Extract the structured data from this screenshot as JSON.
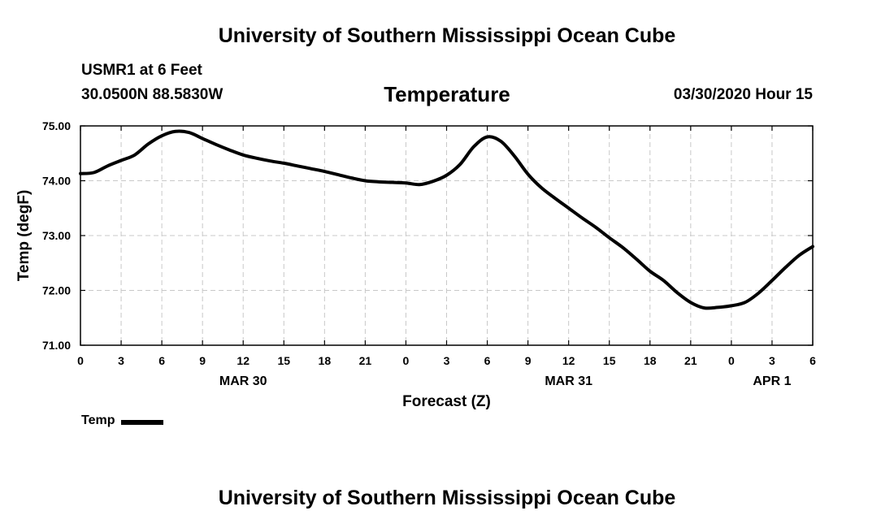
{
  "header": {
    "title": "University of Southern Mississippi Ocean Cube",
    "station": "USMR1 at 6 Feet",
    "coordinates": "30.0500N 88.5830W",
    "run_time": "03/30/2020 Hour 15"
  },
  "footer": {
    "title": "University of Southern Mississippi Ocean Cube"
  },
  "chart_data": {
    "type": "line",
    "title": "Temperature",
    "xlabel": "Forecast (Z)",
    "ylabel": "Temp (degF)",
    "xlim": [
      0,
      54
    ],
    "ylim": [
      71.0,
      75.0
    ],
    "grid": true,
    "y_ticks": [
      {
        "value": 71.0,
        "label": "71.00"
      },
      {
        "value": 72.0,
        "label": "72.00"
      },
      {
        "value": 73.0,
        "label": "73.00"
      },
      {
        "value": 74.0,
        "label": "74.00"
      },
      {
        "value": 75.0,
        "label": "75.00"
      }
    ],
    "x_ticks": [
      {
        "value": 0,
        "label": "0"
      },
      {
        "value": 3,
        "label": "3"
      },
      {
        "value": 6,
        "label": "6"
      },
      {
        "value": 9,
        "label": "9"
      },
      {
        "value": 12,
        "label": "12"
      },
      {
        "value": 15,
        "label": "15"
      },
      {
        "value": 18,
        "label": "18"
      },
      {
        "value": 21,
        "label": "21"
      },
      {
        "value": 24,
        "label": "0"
      },
      {
        "value": 27,
        "label": "3"
      },
      {
        "value": 30,
        "label": "6"
      },
      {
        "value": 33,
        "label": "9"
      },
      {
        "value": 36,
        "label": "12"
      },
      {
        "value": 39,
        "label": "15"
      },
      {
        "value": 42,
        "label": "18"
      },
      {
        "value": 45,
        "label": "21"
      },
      {
        "value": 48,
        "label": "0"
      },
      {
        "value": 51,
        "label": "3"
      },
      {
        "value": 54,
        "label": "6"
      }
    ],
    "date_labels": [
      {
        "value": 12,
        "label": "MAR 30"
      },
      {
        "value": 36,
        "label": "MAR 31"
      },
      {
        "value": 51,
        "label": "APR 1"
      }
    ],
    "legend": {
      "position": "bottom-left",
      "entries": [
        "Temp"
      ]
    },
    "series": [
      {
        "name": "Temp",
        "color": "#000000",
        "x": [
          0,
          1,
          2,
          3,
          4,
          5,
          6,
          7,
          8,
          9,
          10,
          11,
          12,
          13,
          14,
          15,
          16,
          17,
          18,
          19,
          20,
          21,
          22,
          23,
          24,
          25,
          26,
          27,
          28,
          29,
          30,
          31,
          32,
          33,
          34,
          35,
          36,
          37,
          38,
          39,
          40,
          41,
          42,
          43,
          44,
          45,
          46,
          47,
          48,
          49,
          50,
          51,
          52,
          53,
          54
        ],
        "values": [
          74.13,
          74.15,
          74.27,
          74.37,
          74.47,
          74.67,
          74.82,
          74.9,
          74.88,
          74.77,
          74.66,
          74.56,
          74.47,
          74.41,
          74.36,
          74.32,
          74.27,
          74.22,
          74.17,
          74.11,
          74.05,
          74.0,
          73.98,
          73.97,
          73.96,
          73.93,
          73.99,
          74.1,
          74.3,
          74.62,
          74.8,
          74.72,
          74.45,
          74.12,
          73.87,
          73.68,
          73.5,
          73.32,
          73.15,
          72.96,
          72.78,
          72.57,
          72.35,
          72.18,
          71.96,
          71.78,
          71.68,
          71.69,
          71.72,
          71.78,
          71.95,
          72.18,
          72.42,
          72.64,
          72.8
        ]
      }
    ]
  }
}
